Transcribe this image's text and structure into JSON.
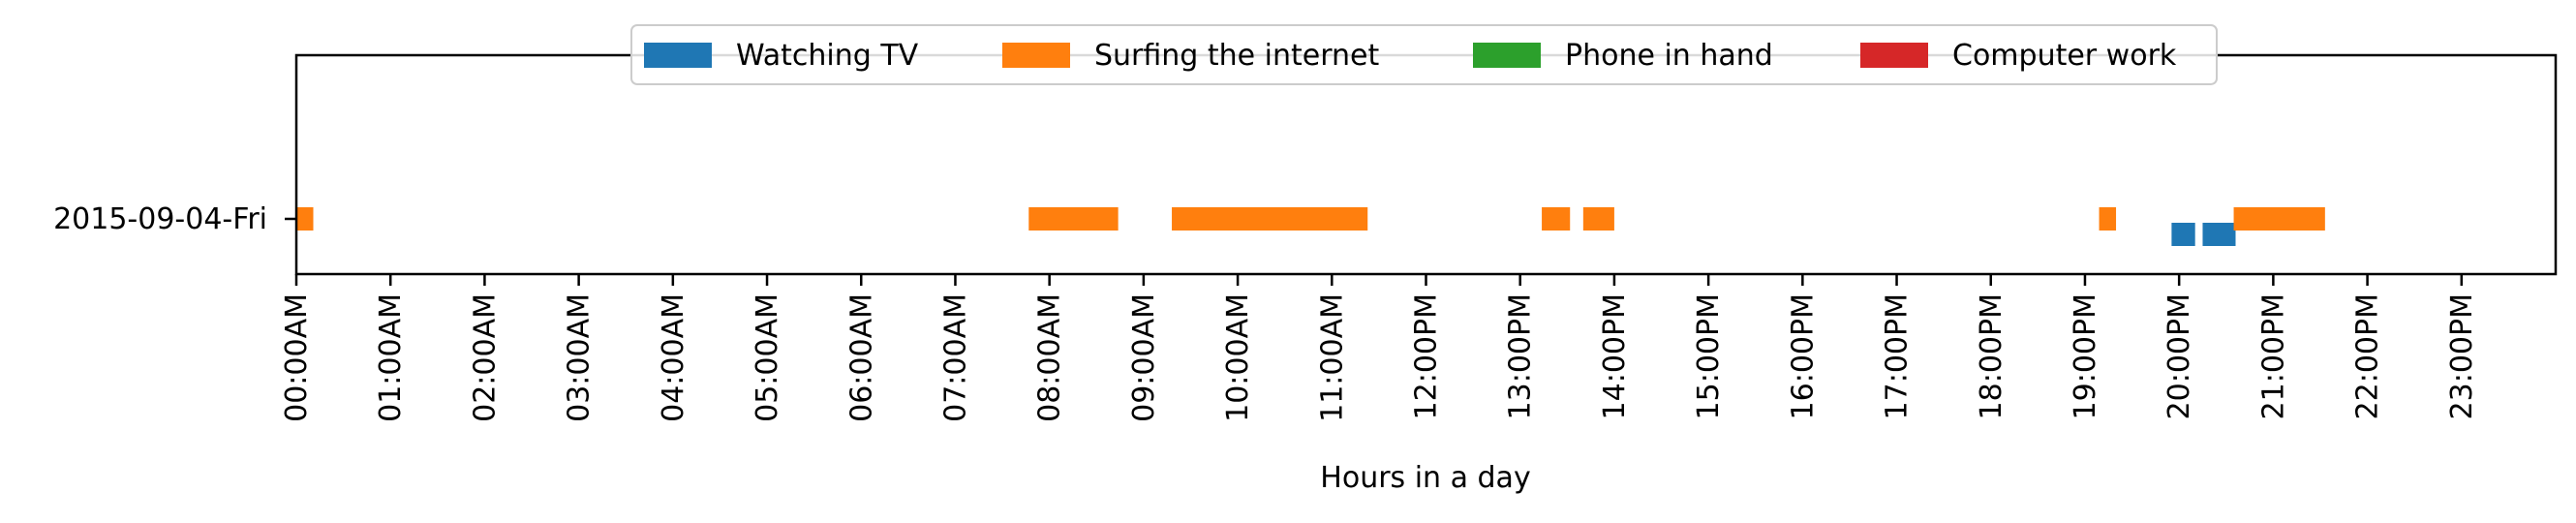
{
  "chart_data": {
    "type": "timeline",
    "title": "",
    "xlabel": "Hours in a day",
    "ylabel": "",
    "xlim": [
      0,
      24
    ],
    "x_ticks": [
      {
        "value": 0,
        "label": "00:00AM"
      },
      {
        "value": 1,
        "label": "01:00AM"
      },
      {
        "value": 2,
        "label": "02:00AM"
      },
      {
        "value": 3,
        "label": "03:00AM"
      },
      {
        "value": 4,
        "label": "04:00AM"
      },
      {
        "value": 5,
        "label": "05:00AM"
      },
      {
        "value": 6,
        "label": "06:00AM"
      },
      {
        "value": 7,
        "label": "07:00AM"
      },
      {
        "value": 8,
        "label": "08:00AM"
      },
      {
        "value": 9,
        "label": "09:00AM"
      },
      {
        "value": 10,
        "label": "10:00AM"
      },
      {
        "value": 11,
        "label": "11:00AM"
      },
      {
        "value": 12,
        "label": "12:00PM"
      },
      {
        "value": 13,
        "label": "13:00PM"
      },
      {
        "value": 14,
        "label": "14:00PM"
      },
      {
        "value": 15,
        "label": "15:00PM"
      },
      {
        "value": 16,
        "label": "16:00PM"
      },
      {
        "value": 17,
        "label": "17:00PM"
      },
      {
        "value": 18,
        "label": "18:00PM"
      },
      {
        "value": 19,
        "label": "19:00PM"
      },
      {
        "value": 20,
        "label": "20:00PM"
      },
      {
        "value": 21,
        "label": "21:00PM"
      },
      {
        "value": 22,
        "label": "22:00PM"
      },
      {
        "value": 23,
        "label": "23:00PM"
      }
    ],
    "rows": [
      "2015-09-04-Fri"
    ],
    "grid": false,
    "legend_position": "top-center",
    "series": [
      {
        "name": "Watching TV",
        "color": "#1f77b4",
        "intervals": [
          {
            "row": "2015-09-04-Fri",
            "start": 19.92,
            "end": 20.17
          },
          {
            "row": "2015-09-04-Fri",
            "start": 20.25,
            "end": 20.6
          }
        ]
      },
      {
        "name": "Surfing the internet",
        "color": "#ff7f0e",
        "intervals": [
          {
            "row": "2015-09-04-Fri",
            "start": 0.0,
            "end": 0.18
          },
          {
            "row": "2015-09-04-Fri",
            "start": 7.78,
            "end": 8.73
          },
          {
            "row": "2015-09-04-Fri",
            "start": 9.3,
            "end": 11.38
          },
          {
            "row": "2015-09-04-Fri",
            "start": 13.23,
            "end": 13.53
          },
          {
            "row": "2015-09-04-Fri",
            "start": 13.67,
            "end": 14.0
          },
          {
            "row": "2015-09-04-Fri",
            "start": 19.15,
            "end": 19.33
          },
          {
            "row": "2015-09-04-Fri",
            "start": 20.58,
            "end": 21.55
          }
        ]
      },
      {
        "name": "Phone in hand",
        "color": "#2ca02c",
        "intervals": []
      },
      {
        "name": "Computer work",
        "color": "#d62728",
        "intervals": []
      }
    ]
  }
}
